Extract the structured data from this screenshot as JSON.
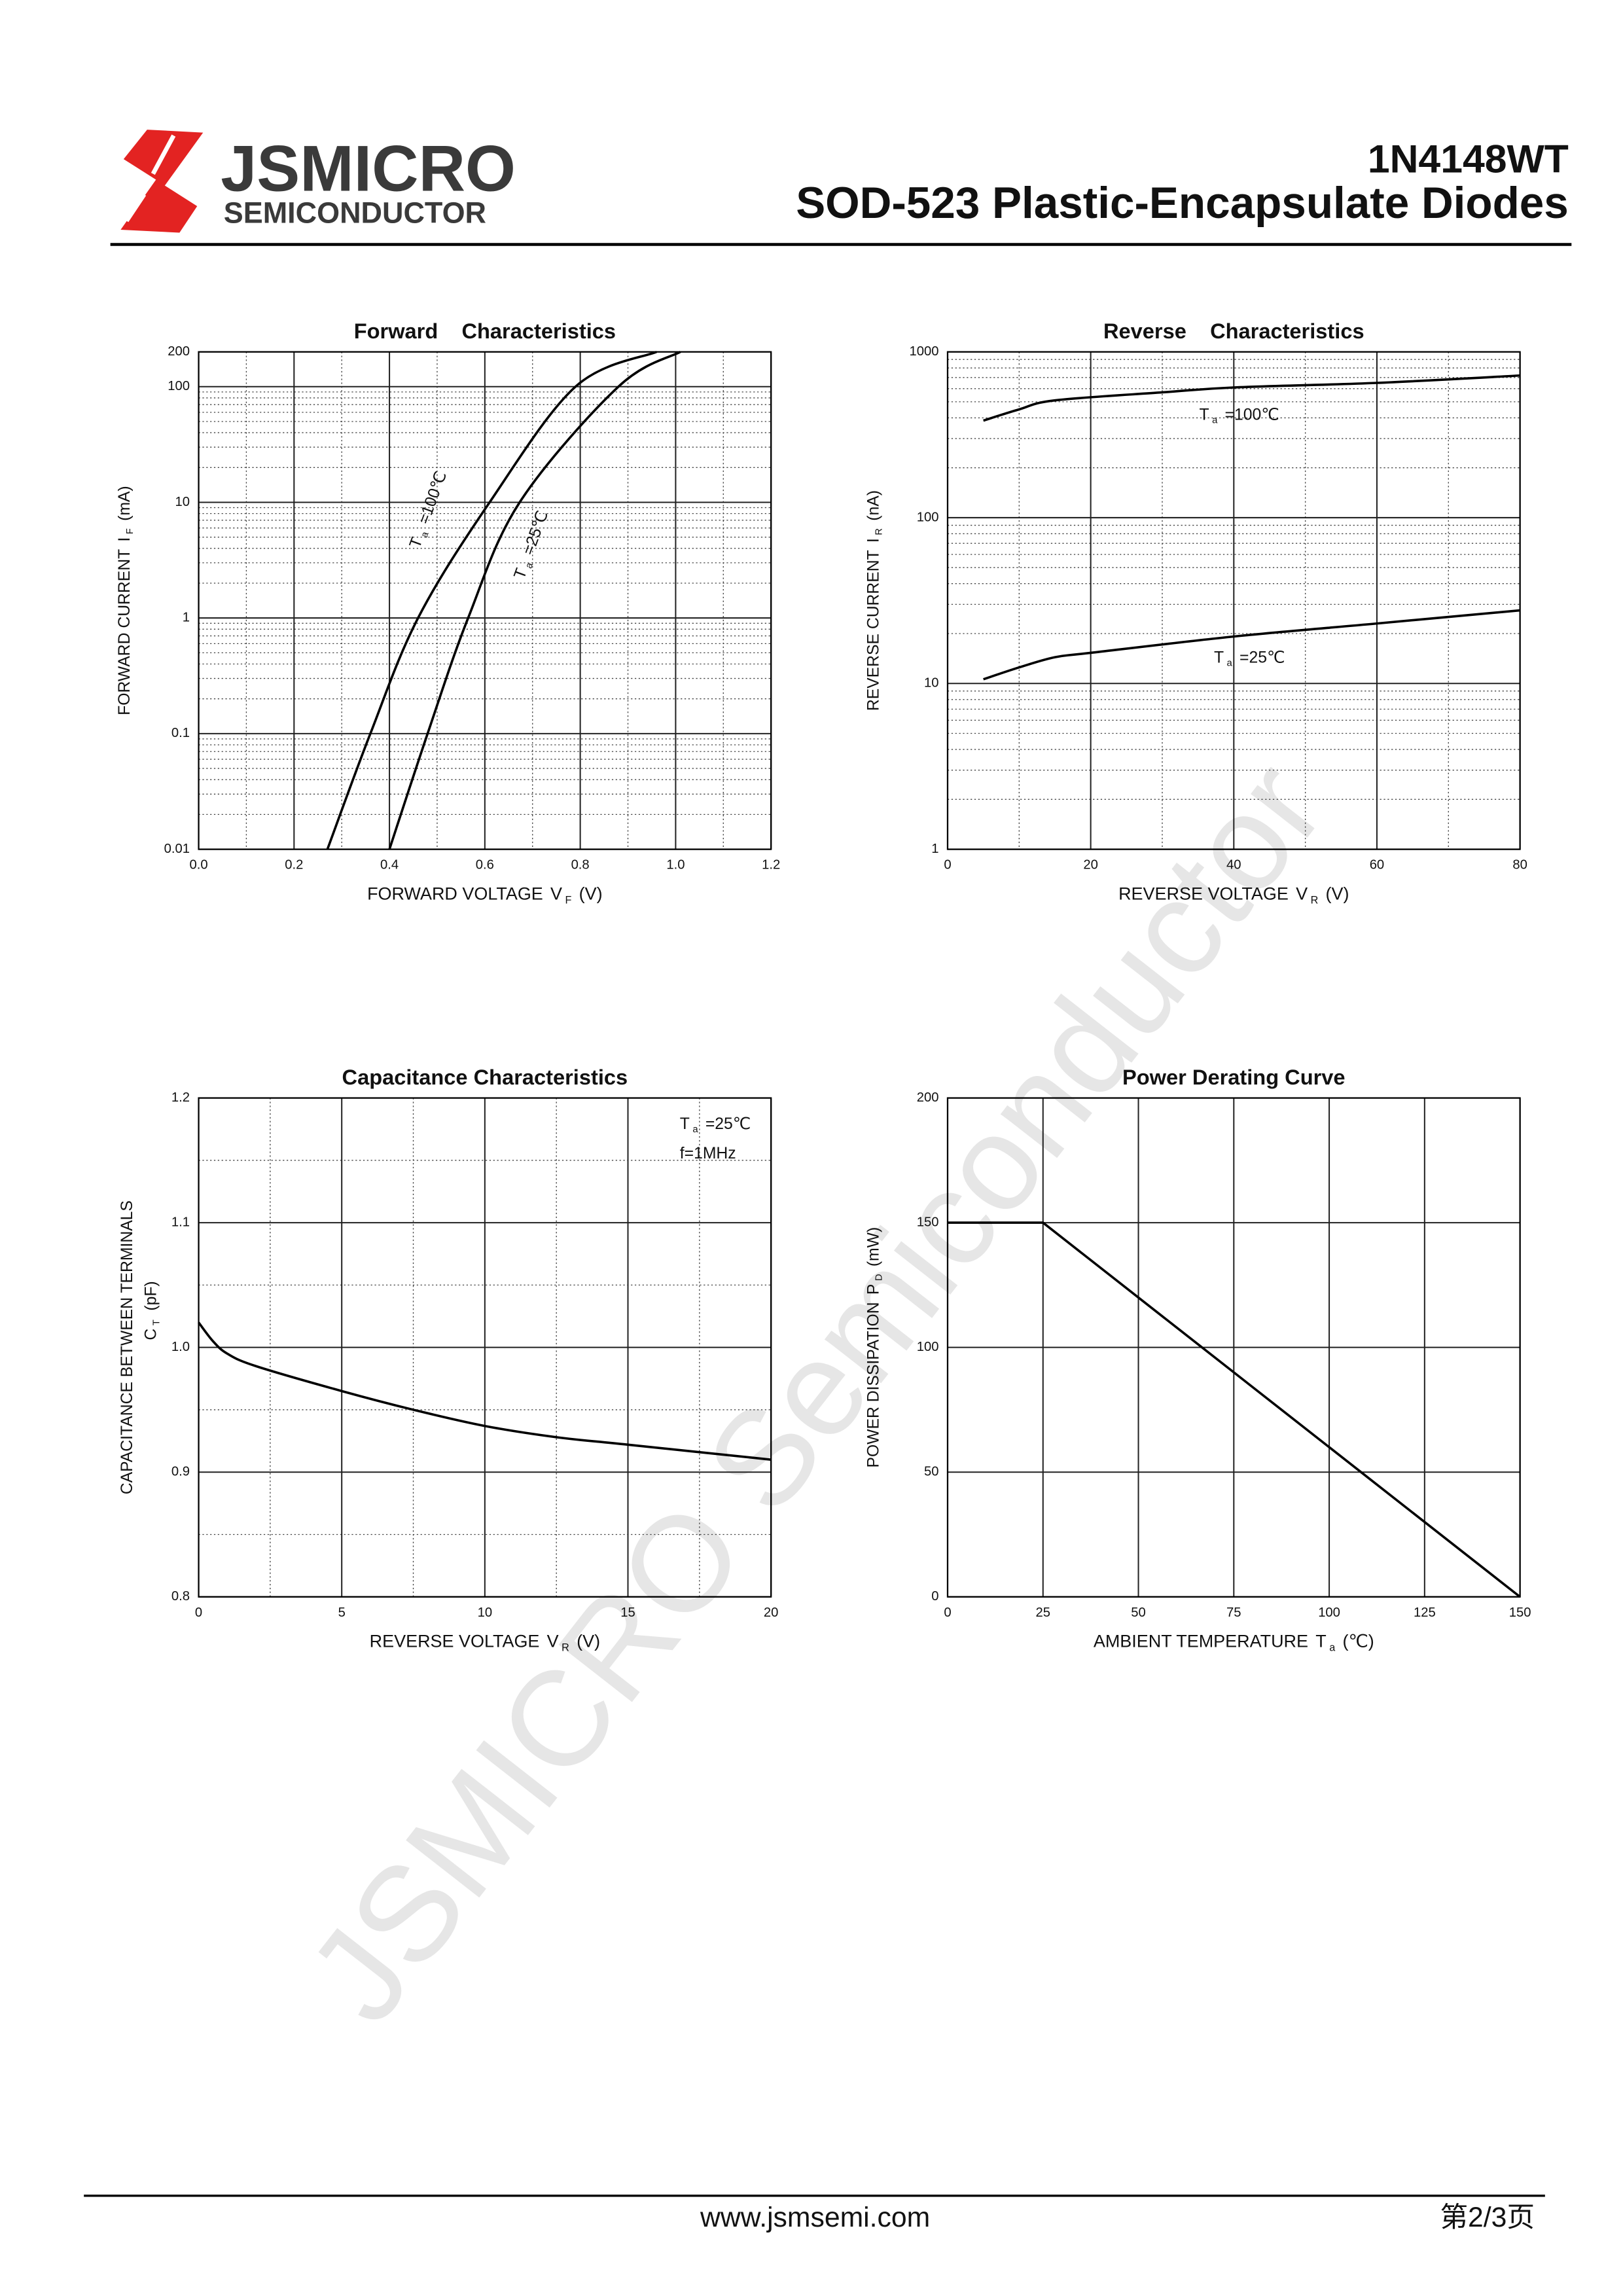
{
  "header": {
    "brand": "JSMICRO",
    "brand_sub": "SEMICONDUCTOR",
    "part": "1N4148WT",
    "title": "SOD-523 Plastic-Encapsulate Diodes"
  },
  "watermark": "JSMICRO Semiconductor",
  "chart_data": [
    {
      "type": "line",
      "title": "Forward    Characteristics",
      "log_y": true,
      "grid": true,
      "minor_grid": true,
      "color": "#000000",
      "xlabel": [
        "FORWARD VOLTAGE",
        "V",
        "F",
        "(V)"
      ],
      "ylabel": [
        "FORWARD CURRENT",
        "I",
        "F",
        "(mA)"
      ],
      "xlim": [
        0,
        1.2
      ],
      "xticks": [
        {
          "value": 0,
          "label": "0.0"
        },
        0.2,
        0.4,
        0.6,
        0.8,
        {
          "value": 1,
          "label": "1.0"
        },
        1.2
      ],
      "ylim": [
        0.01,
        200
      ],
      "yticks": [
        0.01,
        0.1,
        1,
        10,
        100,
        200
      ],
      "series": [
        {
          "name": [
            "T",
            "a",
            "=100℃"
          ],
          "x": [
            0.27,
            0.36,
            0.46,
            0.61,
            0.79,
            0.96
          ],
          "values": [
            0.01,
            0.1,
            1,
            10,
            100,
            200
          ]
        },
        {
          "name": [
            "T",
            "a",
            "=25℃"
          ],
          "x": [
            0.4,
            0.48,
            0.565,
            0.673,
            0.88,
            1.01
          ],
          "values": [
            0.01,
            0.1,
            1,
            10,
            100,
            200
          ]
        }
      ]
    },
    {
      "type": "line",
      "title": "Reverse    Characteristics",
      "log_y": true,
      "grid": true,
      "minor_grid": true,
      "color": "#000000",
      "xlabel": [
        "REVERSE VOLTAGE",
        "V",
        "R",
        "(V)"
      ],
      "ylabel": [
        "REVERSE CURRENT",
        "I",
        "R",
        "(nA)"
      ],
      "xlim": [
        0,
        80
      ],
      "xticks": [
        0,
        20,
        40,
        60,
        80
      ],
      "ylim": [
        1,
        1000
      ],
      "yticks": [
        1,
        10,
        100,
        1000
      ],
      "series": [
        {
          "name": [
            "T",
            "a",
            "=100℃"
          ],
          "x": [
            5,
            10,
            15,
            30,
            40,
            60,
            80
          ],
          "values": [
            385,
            450,
            510,
            570,
            610,
            650,
            720
          ]
        },
        {
          "name": [
            "T",
            "a",
            "=25℃"
          ],
          "x": [
            5,
            10,
            15,
            20,
            40,
            60,
            80
          ],
          "values": [
            10.6,
            12.5,
            14.4,
            15.3,
            19.2,
            23,
            27.6
          ]
        }
      ]
    },
    {
      "type": "line",
      "title": "Capacitance Characteristics",
      "log_y": false,
      "grid": true,
      "minor_grid": true,
      "color": "#000000",
      "xlabel": [
        "REVERSE VOLTAGE",
        "V",
        "R",
        "(V)"
      ],
      "ylabel": [
        "CAPACITANCE BETWEEN TERMINALS",
        "C",
        "T",
        "(pF)"
      ],
      "xlim": [
        0,
        20
      ],
      "xticks": [
        0,
        5,
        10,
        15,
        20
      ],
      "ylim": [
        0.8,
        1.2
      ],
      "yticks": [
        0.8,
        0.9,
        {
          "value": 1,
          "label": "1.0"
        },
        1.1,
        1.2
      ],
      "annotations": [
        [
          "T",
          "a",
          "=25℃"
        ],
        [
          "f=1MHz"
        ]
      ],
      "series": [
        {
          "x": [
            0,
            0.5,
            1,
            2,
            5,
            7.5,
            10,
            12.5,
            15,
            20
          ],
          "values": [
            1.02,
            1.005,
            0.995,
            0.985,
            0.965,
            0.95,
            0.937,
            0.928,
            0.922,
            0.91
          ]
        }
      ]
    },
    {
      "type": "line",
      "title": "Power Derating Curve",
      "log_y": false,
      "grid": true,
      "minor_grid": false,
      "color": "#000000",
      "xlabel": [
        "AMBIENT TEMPERATURE",
        "T",
        "a",
        "(℃)"
      ],
      "ylabel": [
        "POWER DISSIPATION",
        "P",
        "D",
        "(mW)"
      ],
      "xlim": [
        0,
        150
      ],
      "xticks": [
        0,
        25,
        50,
        75,
        100,
        125,
        150
      ],
      "ylim": [
        0,
        200
      ],
      "yticks": [
        0,
        50,
        100,
        150,
        200
      ],
      "series": [
        {
          "x": [
            0,
            25,
            150
          ],
          "values": [
            150,
            150,
            0
          ]
        }
      ]
    }
  ],
  "footer": {
    "url": "www.jsmsemi.com",
    "page": "第2/3页"
  }
}
